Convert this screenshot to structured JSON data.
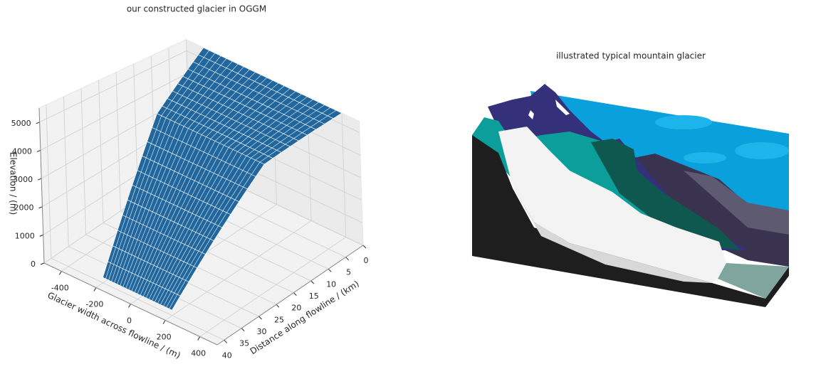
{
  "chart_data": {
    "type": "surface3d",
    "title": "our constructed glacier in OGGM",
    "x_label": "Distance along flowline / (km)",
    "y_label": "Glacier width across flowline / (m)",
    "z_label": "Elevation / (m)",
    "x": [
      0,
      2,
      4,
      6,
      8,
      10,
      12,
      14,
      16,
      18,
      20,
      22,
      24,
      26,
      28,
      30,
      32,
      34,
      36,
      38,
      40
    ],
    "width": [
      800,
      780,
      760,
      740,
      720,
      700,
      680,
      660,
      640,
      620,
      600,
      580,
      560,
      540,
      520,
      500,
      480,
      460,
      440,
      420,
      400
    ],
    "elevation": [
      5500,
      5370,
      5240,
      5110,
      4980,
      4850,
      4720,
      4590,
      4460,
      4330,
      3954,
      3578,
      3202,
      2826,
      2450,
      2074,
      1698,
      1322,
      946,
      570,
      194
    ],
    "color": "#21679d",
    "xlim": [
      0,
      42
    ],
    "ylim": [
      -500,
      500
    ],
    "zlim": [
      0,
      5500
    ],
    "xticks": [
      0,
      5,
      10,
      15,
      20,
      25,
      30,
      35,
      40
    ],
    "yticks": [
      -400,
      -200,
      0,
      200,
      400
    ],
    "zticks": [
      0,
      1000,
      2000,
      3000,
      4000,
      5000
    ],
    "grid": true
  },
  "illustration": {
    "title": "illustrated typical mountain glacier"
  }
}
